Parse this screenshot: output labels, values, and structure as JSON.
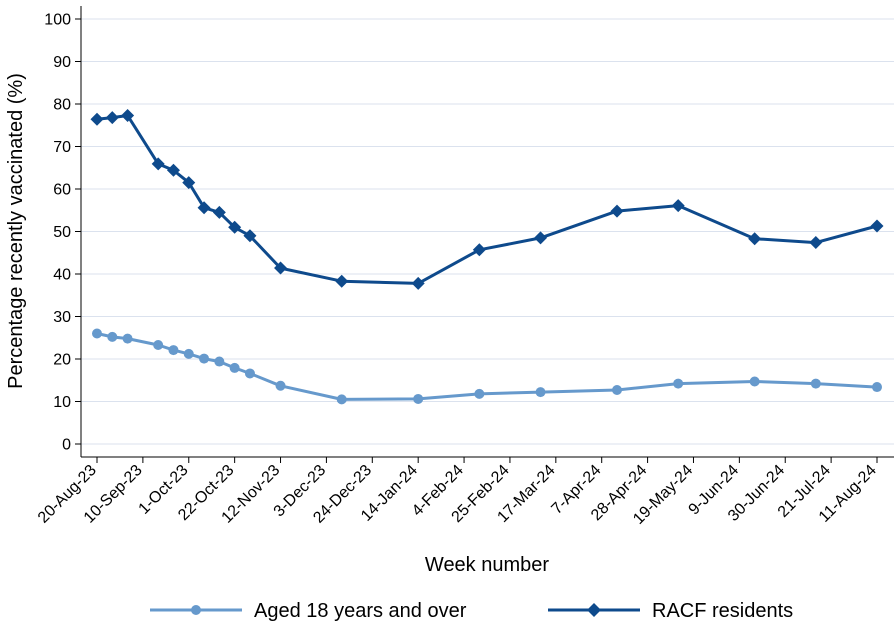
{
  "chart_data": {
    "type": "line",
    "xlabel": "Week number",
    "ylabel": "Percentage recently vaccinated (%)",
    "ylim": [
      0,
      100
    ],
    "yticks": [
      0,
      10,
      20,
      30,
      40,
      50,
      60,
      70,
      80,
      90,
      100
    ],
    "xticks": [
      "20-Aug-23",
      "10-Sep-23",
      "1-Oct-23",
      "22-Oct-23",
      "12-Nov-23",
      "3-Dec-23",
      "24-Dec-23",
      "14-Jan-24",
      "4-Feb-24",
      "25-Feb-24",
      "17-Mar-24",
      "7-Apr-24",
      "28-Apr-24",
      "19-May-24",
      "9-Jun-24",
      "30-Jun-24",
      "21-Jul-24",
      "11-Aug-24"
    ],
    "grid": true,
    "legend_position": "bottom",
    "series": [
      {
        "name": "Aged 18 years and over",
        "color": "#6699cc",
        "marker": "circle",
        "points": [
          {
            "x": "20-Aug-23",
            "y": 26.0
          },
          {
            "x": "27-Aug-23",
            "y": 25.2
          },
          {
            "x": "3-Sep-23",
            "y": 24.8
          },
          {
            "x": "17-Sep-23",
            "y": 23.3
          },
          {
            "x": "24-Sep-23",
            "y": 22.1
          },
          {
            "x": "1-Oct-23",
            "y": 21.2
          },
          {
            "x": "8-Oct-23",
            "y": 20.1
          },
          {
            "x": "15-Oct-23",
            "y": 19.4
          },
          {
            "x": "22-Oct-23",
            "y": 17.9
          },
          {
            "x": "29-Oct-23",
            "y": 16.6
          },
          {
            "x": "12-Nov-23",
            "y": 13.7
          },
          {
            "x": "10-Dec-23",
            "y": 10.5
          },
          {
            "x": "14-Jan-24",
            "y": 10.6
          },
          {
            "x": "11-Feb-24",
            "y": 11.8
          },
          {
            "x": "10-Mar-24",
            "y": 12.2
          },
          {
            "x": "14-Apr-24",
            "y": 12.7
          },
          {
            "x": "12-May-24",
            "y": 14.2
          },
          {
            "x": "16-Jun-24",
            "y": 14.7
          },
          {
            "x": "14-Jul-24",
            "y": 14.2
          },
          {
            "x": "11-Aug-24",
            "y": 13.4
          }
        ]
      },
      {
        "name": "RACF residents",
        "color": "#0e4a8c",
        "marker": "diamond",
        "points": [
          {
            "x": "20-Aug-23",
            "y": 76.4
          },
          {
            "x": "27-Aug-23",
            "y": 76.8
          },
          {
            "x": "3-Sep-23",
            "y": 77.3
          },
          {
            "x": "17-Sep-23",
            "y": 65.9
          },
          {
            "x": "24-Sep-23",
            "y": 64.4
          },
          {
            "x": "1-Oct-23",
            "y": 61.5
          },
          {
            "x": "8-Oct-23",
            "y": 55.6
          },
          {
            "x": "15-Oct-23",
            "y": 54.5
          },
          {
            "x": "22-Oct-23",
            "y": 51.0
          },
          {
            "x": "29-Oct-23",
            "y": 49.0
          },
          {
            "x": "12-Nov-23",
            "y": 41.4
          },
          {
            "x": "10-Dec-23",
            "y": 38.3
          },
          {
            "x": "14-Jan-24",
            "y": 37.8
          },
          {
            "x": "11-Feb-24",
            "y": 45.7
          },
          {
            "x": "10-Mar-24",
            "y": 48.5
          },
          {
            "x": "14-Apr-24",
            "y": 54.8
          },
          {
            "x": "12-May-24",
            "y": 56.1
          },
          {
            "x": "16-Jun-24",
            "y": 48.3
          },
          {
            "x": "14-Jul-24",
            "y": 47.4
          },
          {
            "x": "11-Aug-24",
            "y": 51.3
          }
        ]
      }
    ]
  }
}
